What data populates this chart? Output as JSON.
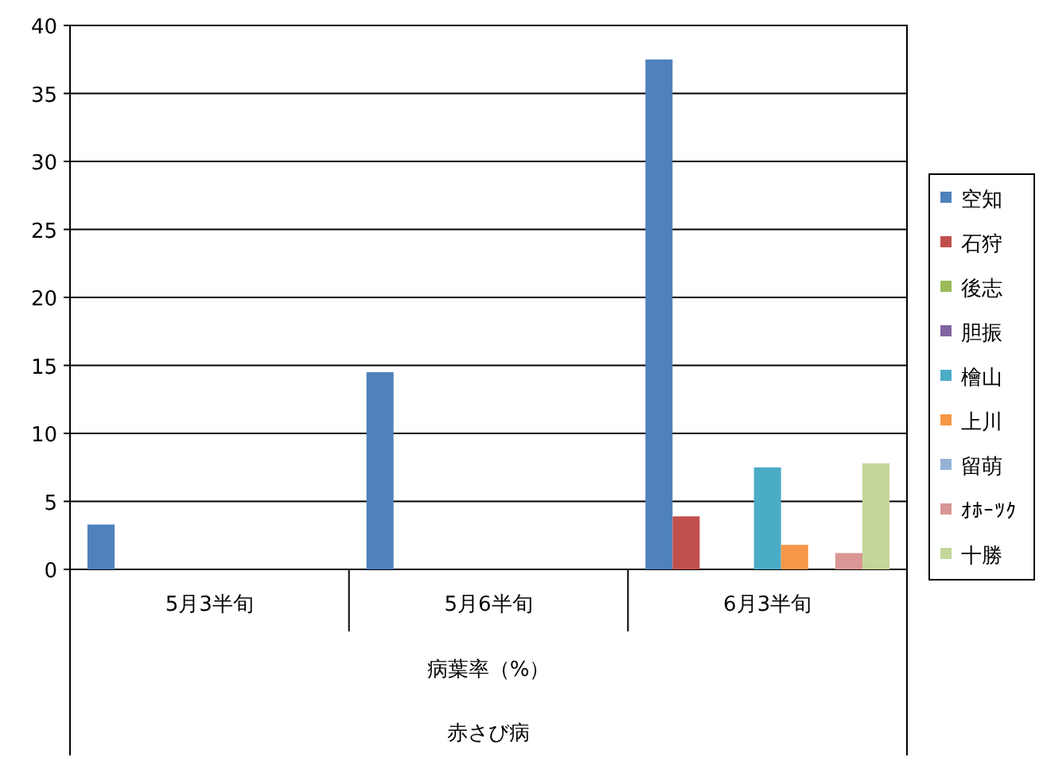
{
  "chart_data": {
    "type": "bar",
    "categories": [
      "5月3半旬",
      "5月6半旬",
      "6月3半旬"
    ],
    "xlabel": "病葉率（%）",
    "annotations": [
      "赤さび病"
    ],
    "ylim": [
      0,
      40
    ],
    "yticks": [
      0,
      5,
      10,
      15,
      20,
      25,
      30,
      35,
      40
    ],
    "grid": "y",
    "legend": "right",
    "series": [
      {
        "name": "空知",
        "color": "#4f81bd",
        "values": [
          3.3,
          14.5,
          37.5
        ]
      },
      {
        "name": "石狩",
        "color": "#c0504d",
        "values": [
          null,
          null,
          3.9
        ]
      },
      {
        "name": "後志",
        "color": "#9bbb59",
        "values": [
          null,
          null,
          null
        ]
      },
      {
        "name": "胆振",
        "color": "#8064a2",
        "values": [
          null,
          null,
          null
        ]
      },
      {
        "name": "檜山",
        "color": "#4bacc6",
        "values": [
          null,
          null,
          7.5
        ]
      },
      {
        "name": "上川",
        "color": "#f79646",
        "values": [
          null,
          null,
          1.8
        ]
      },
      {
        "name": "留萌",
        "color": "#95b3d7",
        "values": [
          null,
          null,
          null
        ]
      },
      {
        "name": "ｵﾎｰﾂｸ",
        "color": "#d99694",
        "values": [
          null,
          null,
          1.2
        ]
      },
      {
        "name": "十勝",
        "color": "#c3d69b",
        "values": [
          null,
          null,
          7.8
        ]
      }
    ]
  }
}
